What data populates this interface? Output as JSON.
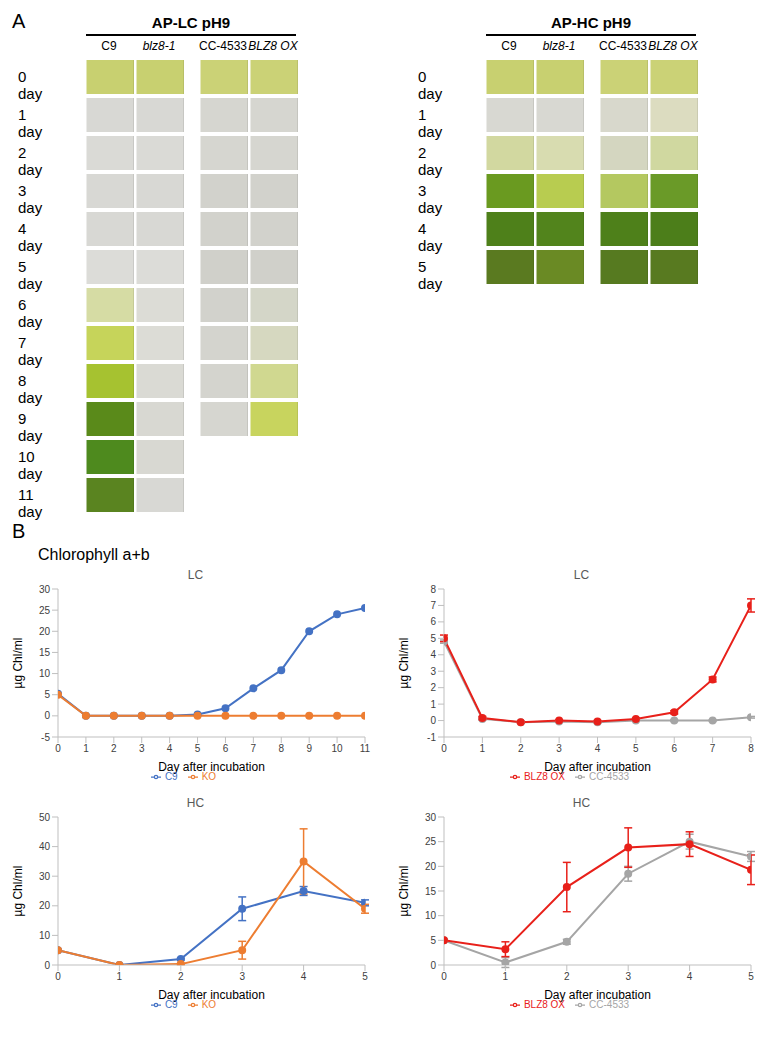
{
  "figure": {
    "panel_a": {
      "label": "A",
      "groups": [
        {
          "title": "AP-LC pH9",
          "strains": [
            "C9",
            "blz8-1",
            "CC-4533",
            "BLZ8 OX"
          ],
          "days": [
            "0 day",
            "1 day",
            "2 day",
            "3 day",
            "4 day",
            "5 day",
            "6 day",
            "7 day",
            "8 day",
            "9 day",
            "10 day",
            "11 day"
          ],
          "tube_colors": [
            [
              "#c8d070",
              "#c8d070",
              "#cbd276",
              "#cbd276"
            ],
            [
              "#d8d8d4",
              "#d8d8d4",
              "#d6d6d0",
              "#d6d6d0"
            ],
            [
              "#dadad6",
              "#dadad6",
              "#d6d6d0",
              "#d6d6d0"
            ],
            [
              "#d8d8d4",
              "#d8d8d4",
              "#d2d2cc",
              "#d2d2cc"
            ],
            [
              "#d8d8d4",
              "#d8d8d4",
              "#d2d2cc",
              "#d2d2cc"
            ],
            [
              "#dcdcd8",
              "#dcdcd8",
              "#d0d0ca",
              "#d0d0ca"
            ],
            [
              "#d6dca4",
              "#dcdcd6",
              "#d2d2cc",
              "#d4d6c8"
            ],
            [
              "#c6d45a",
              "#dcdcd6",
              "#d4d4ce",
              "#d6d8c0"
            ],
            [
              "#a6c230",
              "#dadad4",
              "#d4d4ce",
              "#d0d890"
            ],
            [
              "#5a8a1a",
              "#d8d8d2",
              "#d6d6d0",
              "#c8d45e"
            ],
            [
              "#4e8a1e",
              "#d8d8d2",
              null,
              null
            ],
            [
              "#5a8420",
              "#d8d8d4",
              null,
              null
            ]
          ]
        },
        {
          "title": "AP-HC pH9",
          "strains": [
            "C9",
            "blz8-1",
            "CC-4533",
            "BLZ8 OX"
          ],
          "days": [
            "0 day",
            "1 day",
            "2 day",
            "3 day",
            "4 day",
            "5 day"
          ],
          "tube_colors": [
            [
              "#c8d070",
              "#c8d070",
              "#cbd276",
              "#cbd276"
            ],
            [
              "#d8d8d2",
              "#d8d8d2",
              "#d8d8cc",
              "#dcdcc0"
            ],
            [
              "#d2d8a0",
              "#d8dcb0",
              "#d4d6c0",
              "#d0d8a0"
            ],
            [
              "#6a9a20",
              "#b8cc50",
              "#b4c860",
              "#6a9a28"
            ],
            [
              "#4e801a",
              "#52841c",
              "#4e801a",
              "#4c7e1a"
            ],
            [
              "#5a7a20",
              "#6a8a24",
              "#567a20",
              "#587a20"
            ]
          ]
        }
      ]
    },
    "panel_b": {
      "label": "B",
      "title": "Chlorophyll a+b"
    }
  },
  "chart_data": [
    {
      "type": "line",
      "title": "LC",
      "x_label": "Day after incubation",
      "y_label": "µg Chl/ml",
      "x": [
        0,
        1,
        2,
        3,
        4,
        5,
        6,
        7,
        8,
        9,
        10,
        11
      ],
      "xlim": [
        0,
        11
      ],
      "xticks": [
        0,
        1,
        2,
        3,
        4,
        5,
        6,
        7,
        8,
        9,
        10,
        11
      ],
      "ylim": [
        -5,
        30
      ],
      "yticks": [
        -5,
        0,
        5,
        10,
        15,
        20,
        25,
        30
      ],
      "grid": false,
      "legend": "bottom",
      "series": [
        {
          "name": "C9",
          "color": "#4472c4",
          "marker": "circle",
          "values": [
            5.2,
            0,
            0,
            0,
            0,
            0.3,
            1.8,
            6.5,
            10.8,
            20,
            24,
            25.5
          ]
        },
        {
          "name": "KO",
          "color": "#ed7d31",
          "marker": "circle",
          "values": [
            5,
            0,
            0,
            0,
            0,
            0,
            0,
            0,
            0,
            0,
            0,
            0
          ]
        }
      ]
    },
    {
      "type": "line",
      "title": "LC",
      "x_label": "Day after incubation",
      "y_label": "µg Chl/ml",
      "x": [
        0,
        1,
        2,
        3,
        4,
        5,
        6,
        7,
        8
      ],
      "xlim": [
        0,
        8
      ],
      "xticks": [
        0,
        1,
        2,
        3,
        4,
        5,
        6,
        7,
        8
      ],
      "ylim": [
        -1,
        8
      ],
      "yticks": [
        -1,
        0,
        1,
        2,
        3,
        4,
        5,
        6,
        7,
        8
      ],
      "grid": false,
      "legend": "bottom",
      "series": [
        {
          "name": "CC-4533",
          "color": "#a5a5a5",
          "marker": "circle",
          "values": [
            4.8,
            0.1,
            -0.1,
            -0.05,
            -0.1,
            0,
            0,
            0,
            0.2
          ],
          "errors": [
            0.1,
            0.05,
            0.05,
            0.05,
            0.05,
            0.05,
            0.05,
            0.05,
            0.05
          ]
        },
        {
          "name": "BLZ8 OX",
          "color": "#e8201a",
          "marker": "circle",
          "values": [
            5,
            0.15,
            -0.1,
            0,
            -0.05,
            0.1,
            0.5,
            2.5,
            7
          ],
          "errors": [
            0.2,
            0.1,
            0.05,
            0.05,
            0.05,
            0.05,
            0.1,
            0.15,
            0.4
          ]
        }
      ]
    },
    {
      "type": "line",
      "title": "HC",
      "x_label": "Day after incubation",
      "y_label": "µg Chl/ml",
      "x": [
        0,
        1,
        2,
        3,
        4,
        5
      ],
      "xlim": [
        0,
        5
      ],
      "xticks": [
        0,
        1,
        2,
        3,
        4,
        5
      ],
      "ylim": [
        0,
        50
      ],
      "yticks": [
        0,
        10,
        20,
        30,
        40,
        50
      ],
      "grid": false,
      "legend": "bottom",
      "series": [
        {
          "name": "C9",
          "color": "#4472c4",
          "marker": "circle",
          "values": [
            5,
            0,
            2,
            19,
            25,
            21
          ],
          "errors": [
            0,
            0,
            0.3,
            4,
            1.5,
            1
          ]
        },
        {
          "name": "KO",
          "color": "#ed7d31",
          "marker": "circle",
          "values": [
            5,
            0,
            0.3,
            5,
            35,
            19
          ],
          "errors": [
            0,
            0,
            0.2,
            3,
            11,
            1.5
          ]
        }
      ]
    },
    {
      "type": "line",
      "title": "HC",
      "x_label": "Day after incubation",
      "y_label": "µg Chl/ml",
      "x": [
        0,
        1,
        2,
        3,
        4,
        5
      ],
      "xlim": [
        0,
        5
      ],
      "xticks": [
        0,
        1,
        2,
        3,
        4,
        5
      ],
      "ylim": [
        0,
        30
      ],
      "yticks": [
        0,
        5,
        10,
        15,
        20,
        25,
        30
      ],
      "grid": false,
      "legend": "bottom",
      "series": [
        {
          "name": "CC-4533",
          "color": "#a5a5a5",
          "marker": "circle",
          "values": [
            5,
            0.5,
            4.7,
            18.5,
            25,
            22
          ],
          "errors": [
            0,
            1,
            0.5,
            1.5,
            1.5,
            1
          ]
        },
        {
          "name": "BLZ8 OX",
          "color": "#e8201a",
          "marker": "circle",
          "values": [
            5,
            3.2,
            15.8,
            23.8,
            24.5,
            19.3
          ],
          "errors": [
            0,
            1.5,
            5,
            4,
            2.5,
            3
          ]
        }
      ]
    }
  ]
}
